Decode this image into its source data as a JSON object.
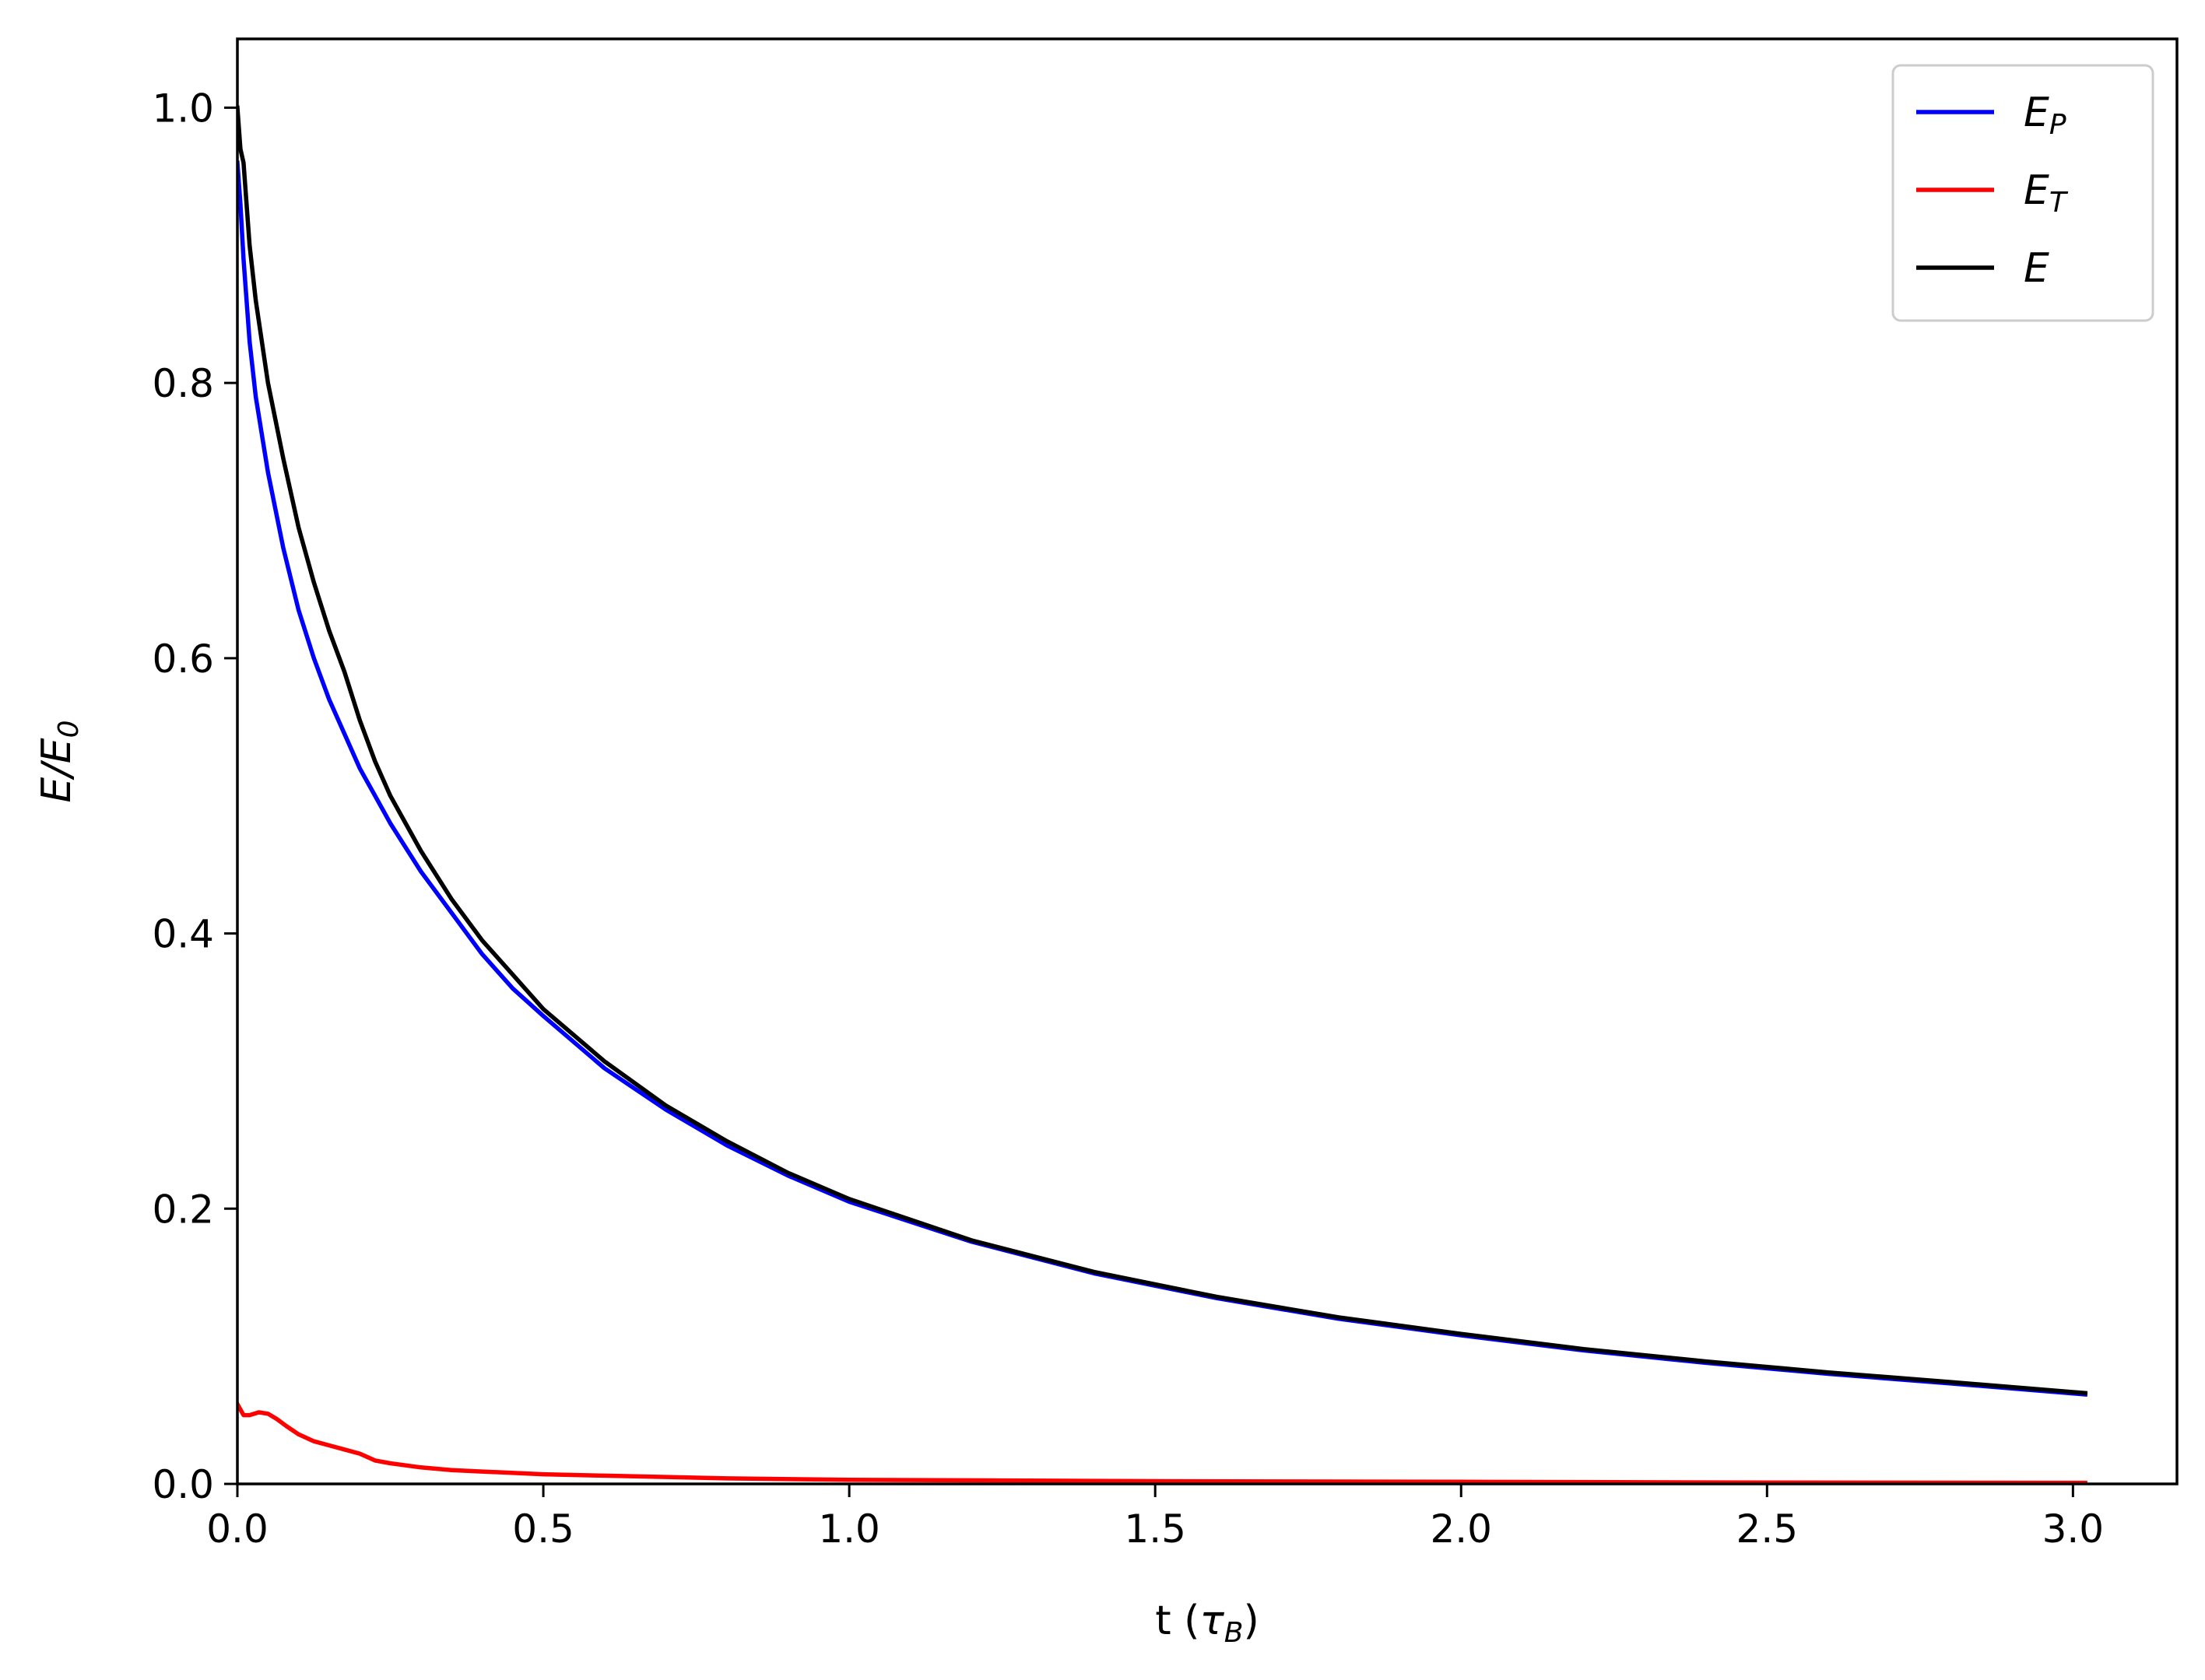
{
  "chart_data": {
    "type": "line",
    "xlabel": {
      "main": "t (",
      "symbol": "τ",
      "sub": "B",
      "close": ")"
    },
    "ylabel": {
      "E": "E",
      "slash": "/",
      "E0": "E",
      "sub": "0"
    },
    "xlim": [
      0,
      3.17
    ],
    "ylim": [
      0,
      1.05
    ],
    "xticks": [
      {
        "value": 0.0,
        "label": "0.0"
      },
      {
        "value": 0.5,
        "label": "0.5"
      },
      {
        "value": 1.0,
        "label": "1.0"
      },
      {
        "value": 1.5,
        "label": "1.5"
      },
      {
        "value": 2.0,
        "label": "2.0"
      },
      {
        "value": 2.5,
        "label": "2.5"
      },
      {
        "value": 3.0,
        "label": "3.0"
      }
    ],
    "yticks": [
      {
        "value": 0.0,
        "label": "0.0"
      },
      {
        "value": 0.2,
        "label": "0.2"
      },
      {
        "value": 0.4,
        "label": "0.4"
      },
      {
        "value": 0.6,
        "label": "0.6"
      },
      {
        "value": 0.8,
        "label": "0.8"
      },
      {
        "value": 1.0,
        "label": "1.0"
      }
    ],
    "grid": false,
    "legend_position": "top-right",
    "series": [
      {
        "legend_main": "E",
        "legend_sub": "P",
        "color": "#0000ff",
        "x": [
          0.0,
          0.005,
          0.01,
          0.02,
          0.03,
          0.05,
          0.075,
          0.1,
          0.125,
          0.15,
          0.175,
          0.2,
          0.225,
          0.25,
          0.3,
          0.35,
          0.4,
          0.45,
          0.5,
          0.6,
          0.7,
          0.8,
          0.9,
          1.0,
          1.2,
          1.4,
          1.6,
          1.8,
          2.0,
          2.2,
          2.4,
          2.6,
          2.8,
          3.02
        ],
        "y": [
          0.96,
          0.93,
          0.89,
          0.83,
          0.79,
          0.735,
          0.68,
          0.635,
          0.6,
          0.57,
          0.545,
          0.52,
          0.5,
          0.48,
          0.445,
          0.415,
          0.385,
          0.36,
          0.34,
          0.302,
          0.272,
          0.246,
          0.224,
          0.205,
          0.176,
          0.153,
          0.135,
          0.12,
          0.108,
          0.097,
          0.088,
          0.08,
          0.073,
          0.065
        ]
      },
      {
        "legend_main": "E",
        "legend_sub": "T",
        "color": "#ff0000",
        "x": [
          0.0,
          0.01,
          0.02,
          0.035,
          0.05,
          0.065,
          0.08,
          0.1,
          0.125,
          0.15,
          0.175,
          0.2,
          0.225,
          0.25,
          0.3,
          0.35,
          0.4,
          0.5,
          0.6,
          0.8,
          1.0,
          1.5,
          2.0,
          2.5,
          3.02
        ],
        "y": [
          0.058,
          0.05,
          0.05,
          0.052,
          0.051,
          0.047,
          0.042,
          0.036,
          0.031,
          0.028,
          0.025,
          0.022,
          0.017,
          0.015,
          0.012,
          0.01,
          0.009,
          0.007,
          0.006,
          0.004,
          0.003,
          0.002,
          0.0015,
          0.001,
          0.0008
        ]
      },
      {
        "legend_main": "E",
        "legend_sub": "",
        "color": "#000000",
        "x": [
          0.0,
          0.005,
          0.01,
          0.02,
          0.03,
          0.05,
          0.075,
          0.1,
          0.125,
          0.15,
          0.175,
          0.2,
          0.225,
          0.25,
          0.3,
          0.35,
          0.4,
          0.45,
          0.5,
          0.6,
          0.7,
          0.8,
          0.9,
          1.0,
          1.2,
          1.4,
          1.6,
          1.8,
          2.0,
          2.2,
          2.4,
          2.6,
          2.8,
          3.02
        ],
        "y": [
          1.0,
          0.97,
          0.96,
          0.9,
          0.86,
          0.8,
          0.745,
          0.695,
          0.655,
          0.62,
          0.59,
          0.555,
          0.525,
          0.5,
          0.46,
          0.425,
          0.395,
          0.37,
          0.345,
          0.307,
          0.275,
          0.249,
          0.226,
          0.207,
          0.177,
          0.154,
          0.136,
          0.121,
          0.109,
          0.098,
          0.089,
          0.081,
          0.074,
          0.066
        ]
      }
    ]
  }
}
